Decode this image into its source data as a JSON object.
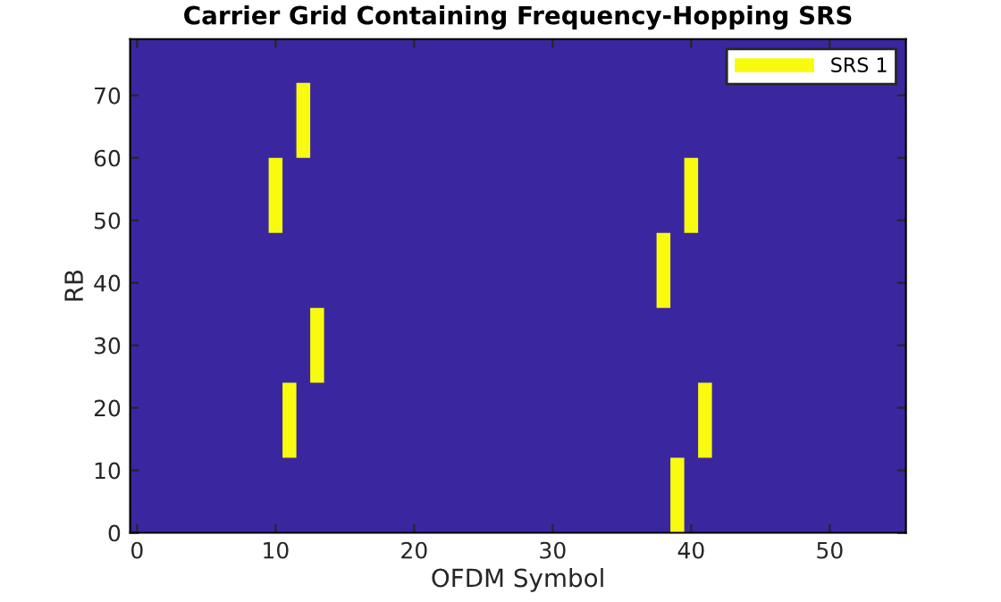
{
  "chart_data": {
    "type": "bar",
    "title": "Carrier Grid Containing Frequency-Hopping SRS",
    "xlabel": "OFDM Symbol",
    "ylabel": "RB",
    "x": [
      10,
      11,
      12,
      13,
      38,
      39,
      40,
      41
    ],
    "series": [
      {
        "name": "SRS 1",
        "color": "#f9fb0e",
        "values": [
          12,
          12,
          12,
          12,
          12,
          12,
          12,
          12
        ],
        "base": [
          48,
          12,
          60,
          24,
          36,
          0,
          48,
          12
        ]
      }
    ],
    "xlim": [
      -0.5,
      55.5
    ],
    "ylim": [
      0,
      79
    ],
    "xticks": [
      0,
      10,
      20,
      30,
      40,
      50
    ],
    "yticks": [
      0,
      10,
      20,
      30,
      40,
      50,
      60,
      70
    ],
    "legend": "top right",
    "grid": false
  }
}
